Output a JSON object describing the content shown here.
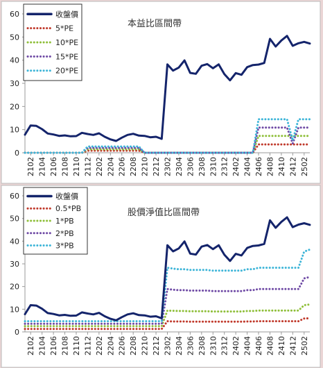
{
  "colors": {
    "page_background": "#ebd6d6",
    "panel_background": "#ffffff",
    "price": "#14246b",
    "red": "#c0392b",
    "green": "#8fbf3a",
    "purple": "#6f4aa5",
    "cyan": "#3eb5d8"
  },
  "x_tick_labels": [
    "2102",
    "2104",
    "2106",
    "2108",
    "2110",
    "2112",
    "2202",
    "2204",
    "2206",
    "2208",
    "2210",
    "2212",
    "2302",
    "2304",
    "2306",
    "2308",
    "2310",
    "2312",
    "2402",
    "2404",
    "2406",
    "2408",
    "2410",
    "2412",
    "2502"
  ],
  "chart_data": [
    {
      "type": "line",
      "title": "本益比區間帶",
      "ylim": [
        0,
        60
      ],
      "yticks": [
        0,
        10,
        20,
        30,
        40,
        50,
        60
      ],
      "grid": false,
      "legend_position": "top-left",
      "x": [
        "2101",
        "2102",
        "2103",
        "2104",
        "2105",
        "2106",
        "2107",
        "2108",
        "2109",
        "2110",
        "2111",
        "2112",
        "2201",
        "2202",
        "2203",
        "2204",
        "2205",
        "2206",
        "2207",
        "2208",
        "2209",
        "2210",
        "2211",
        "2212",
        "2301",
        "2302",
        "2303",
        "2304",
        "2305",
        "2306",
        "2307",
        "2308",
        "2309",
        "2310",
        "2311",
        "2312",
        "2401",
        "2402",
        "2403",
        "2404",
        "2405",
        "2406",
        "2407",
        "2408",
        "2409",
        "2410",
        "2411",
        "2412",
        "2501",
        "2502",
        "2503"
      ],
      "series": [
        {
          "name": "收盤價",
          "color": "#14246b",
          "style": "solid",
          "values": [
            7.8,
            11.8,
            11.6,
            10.2,
            8.3,
            7.9,
            7.3,
            7.5,
            7.1,
            7.2,
            8.6,
            8.1,
            7.7,
            8.4,
            6.9,
            5.8,
            5.1,
            6.5,
            7.7,
            8.2,
            7.4,
            7.3,
            6.7,
            6.9,
            6.0,
            38.2,
            35.5,
            36.8,
            39.9,
            34.5,
            34.1,
            37.6,
            38.3,
            36.5,
            38.2,
            34.0,
            31.3,
            34.4,
            33.7,
            37.0,
            37.9,
            38.1,
            38.8,
            49.2,
            45.9,
            48.5,
            50.5,
            46.2,
            47.3,
            47.9,
            47.2
          ]
        },
        {
          "name": "5*PE",
          "color": "#c0392b",
          "style": "dotted",
          "values": [
            0,
            0,
            0,
            0,
            0,
            0,
            0,
            0,
            0,
            0,
            0,
            0.9,
            0.9,
            0.9,
            0.9,
            0.9,
            0.9,
            0.9,
            0.9,
            0.9,
            0.9,
            0,
            0,
            0,
            0,
            0,
            0,
            0,
            0,
            0,
            0,
            0,
            0,
            0,
            0,
            0,
            0,
            0,
            0,
            0,
            0,
            3.6,
            3.6,
            3.6,
            3.6,
            3.6,
            3.6,
            3.6,
            3.6,
            3.6,
            3.6
          ]
        },
        {
          "name": "10*PE",
          "color": "#8fbf3a",
          "style": "dotted",
          "values": [
            0,
            0,
            0,
            0,
            0,
            0,
            0,
            0,
            0,
            0,
            0,
            1.5,
            1.5,
            1.5,
            1.5,
            1.5,
            1.5,
            1.5,
            1.5,
            1.5,
            1.5,
            0,
            0,
            0,
            0,
            0,
            0,
            0,
            0,
            0,
            0,
            0,
            0,
            0,
            0,
            0,
            0,
            0,
            0,
            0,
            0,
            7.3,
            7.3,
            7.3,
            7.3,
            7.3,
            7.3,
            7.3,
            7.3,
            7.3,
            7.3
          ]
        },
        {
          "name": "15*PE",
          "color": "#6f4aa5",
          "style": "dotted",
          "values": [
            0,
            0,
            0,
            0,
            0,
            0,
            0,
            0,
            0,
            0,
            0,
            2.1,
            2.1,
            2.1,
            2.1,
            2.1,
            2.1,
            2.1,
            2.1,
            2.1,
            2.1,
            0,
            0,
            0,
            0,
            0,
            0,
            0,
            0,
            0,
            0,
            0,
            0,
            0,
            0,
            0,
            0,
            0,
            0,
            0,
            0,
            10.9,
            10.9,
            10.9,
            10.9,
            10.9,
            10.9,
            4.0,
            10.9,
            10.9,
            10.9
          ]
        },
        {
          "name": "20*PE",
          "color": "#3eb5d8",
          "style": "dotted",
          "values": [
            0,
            0,
            0,
            0,
            0,
            0,
            0,
            0,
            0,
            0,
            0,
            2.7,
            2.7,
            2.7,
            2.7,
            2.7,
            2.7,
            2.7,
            2.7,
            2.7,
            2.7,
            0,
            0,
            0,
            0,
            0,
            0,
            0,
            0,
            0,
            0,
            0,
            0,
            0,
            0,
            0,
            0,
            0,
            0,
            0,
            0,
            14.5,
            14.5,
            14.5,
            14.5,
            14.5,
            14.5,
            5.3,
            14.5,
            14.5,
            14.5
          ]
        }
      ]
    },
    {
      "type": "line",
      "title": "股價淨值比區間帶",
      "ylim": [
        0,
        60
      ],
      "yticks": [
        0,
        10,
        20,
        30,
        40,
        50,
        60
      ],
      "grid": false,
      "legend_position": "top-left",
      "x": [
        "2101",
        "2102",
        "2103",
        "2104",
        "2105",
        "2106",
        "2107",
        "2108",
        "2109",
        "2110",
        "2111",
        "2112",
        "2201",
        "2202",
        "2203",
        "2204",
        "2205",
        "2206",
        "2207",
        "2208",
        "2209",
        "2210",
        "2211",
        "2212",
        "2301",
        "2302",
        "2303",
        "2304",
        "2305",
        "2306",
        "2307",
        "2308",
        "2309",
        "2310",
        "2311",
        "2312",
        "2401",
        "2402",
        "2403",
        "2404",
        "2405",
        "2406",
        "2407",
        "2408",
        "2409",
        "2410",
        "2411",
        "2412",
        "2501",
        "2502",
        "2503"
      ],
      "series": [
        {
          "name": "收盤價",
          "color": "#14246b",
          "style": "solid",
          "values": [
            7.8,
            11.8,
            11.6,
            10.2,
            8.3,
            7.9,
            7.3,
            7.5,
            7.1,
            7.2,
            8.6,
            8.1,
            7.7,
            8.4,
            6.9,
            5.8,
            5.1,
            6.5,
            7.7,
            8.2,
            7.4,
            7.3,
            6.7,
            6.9,
            6.0,
            38.2,
            35.5,
            36.8,
            39.9,
            34.5,
            34.1,
            37.6,
            38.3,
            36.5,
            38.2,
            34.0,
            31.3,
            34.4,
            33.7,
            37.0,
            37.9,
            38.1,
            38.8,
            49.2,
            45.9,
            48.5,
            50.5,
            46.2,
            47.3,
            47.9,
            47.2
          ]
        },
        {
          "name": "0.5*PB",
          "color": "#c0392b",
          "style": "dotted",
          "values": [
            1.3,
            1.3,
            1.3,
            1.3,
            1.3,
            1.3,
            1.3,
            1.3,
            1.3,
            1.3,
            1.3,
            1.3,
            1.3,
            1.3,
            1.3,
            1.3,
            1.3,
            1.3,
            1.3,
            1.3,
            1.3,
            1.3,
            1.3,
            1.3,
            1.3,
            4.7,
            4.6,
            4.6,
            4.6,
            4.5,
            4.5,
            4.5,
            4.5,
            4.5,
            4.5,
            4.5,
            4.5,
            4.5,
            4.5,
            4.6,
            4.6,
            4.7,
            4.7,
            4.7,
            4.7,
            4.7,
            4.7,
            4.7,
            4.7,
            5.9,
            6.0
          ]
        },
        {
          "name": "1*PB",
          "color": "#8fbf3a",
          "style": "dotted",
          "values": [
            2.5,
            2.5,
            2.5,
            2.5,
            2.5,
            2.5,
            2.5,
            2.5,
            2.5,
            2.5,
            2.5,
            2.5,
            2.5,
            2.5,
            2.5,
            2.5,
            2.5,
            2.5,
            2.5,
            2.5,
            2.5,
            2.5,
            2.5,
            2.5,
            2.5,
            9.4,
            9.3,
            9.2,
            9.2,
            9.1,
            9.1,
            9.1,
            9.1,
            9.0,
            9.0,
            9.0,
            9.0,
            9.0,
            9.0,
            9.2,
            9.2,
            9.4,
            9.4,
            9.4,
            9.4,
            9.4,
            9.4,
            9.4,
            9.4,
            11.8,
            12.1
          ]
        },
        {
          "name": "2*PB",
          "color": "#6f4aa5",
          "style": "dotted",
          "values": [
            3.6,
            3.6,
            3.6,
            3.6,
            3.6,
            3.6,
            3.6,
            3.6,
            3.6,
            3.6,
            3.6,
            3.6,
            3.6,
            3.6,
            3.6,
            3.6,
            3.6,
            3.6,
            3.6,
            3.6,
            3.6,
            3.6,
            3.6,
            3.6,
            3.6,
            18.9,
            18.6,
            18.4,
            18.4,
            18.2,
            18.2,
            18.2,
            18.2,
            18.0,
            18.0,
            18.0,
            18.0,
            18.0,
            18.0,
            18.4,
            18.4,
            18.9,
            18.9,
            18.9,
            18.9,
            18.9,
            18.9,
            18.9,
            18.9,
            23.6,
            24.2
          ]
        },
        {
          "name": "3*PB",
          "color": "#3eb5d8",
          "style": "dotted",
          "values": [
            4.7,
            4.7,
            4.7,
            4.7,
            4.7,
            4.7,
            4.7,
            4.7,
            4.7,
            4.7,
            4.7,
            4.7,
            4.7,
            4.7,
            4.7,
            4.7,
            4.7,
            4.7,
            4.7,
            4.7,
            4.7,
            4.7,
            4.7,
            4.7,
            4.7,
            28.3,
            27.9,
            27.6,
            27.6,
            27.3,
            27.3,
            27.3,
            27.3,
            27.0,
            27.0,
            27.0,
            27.0,
            27.0,
            27.0,
            27.6,
            27.6,
            28.3,
            28.3,
            28.3,
            28.3,
            28.3,
            28.3,
            28.3,
            28.3,
            35.4,
            36.3
          ]
        }
      ]
    }
  ]
}
